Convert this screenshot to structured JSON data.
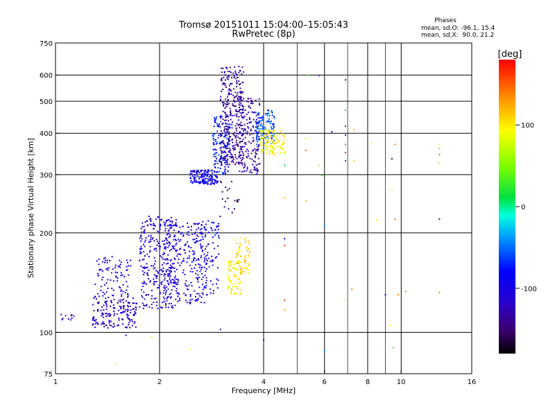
{
  "chart_data": {
    "type": "scatter",
    "title": "Tromsø 20151011 15:04:00–15:05:43",
    "subtitle": "RwPretec (8p)",
    "info": {
      "heading": "Phases",
      "line1": "mean, sd,O: -96.1, 15.4",
      "line2": "mean, sd,X:  90.0, 21.2"
    },
    "xlabel": "Frequency [MHz]",
    "ylabel": "Stationary phase Virtual Height [km]",
    "x_scale": "log",
    "y_scale": "log",
    "xlim": [
      1,
      16
    ],
    "ylim": [
      75,
      750
    ],
    "x_ticks": [
      1,
      2,
      4,
      6,
      8,
      10,
      16
    ],
    "y_ticks": [
      75,
      100,
      200,
      300,
      400,
      500,
      600,
      750
    ],
    "x_major_grid": [
      2,
      4,
      6,
      8,
      10
    ],
    "x_minor_grid": [
      5,
      7,
      9
    ],
    "y_grid": [
      100,
      200,
      300,
      400,
      500,
      600
    ],
    "grid": true,
    "colorbar": {
      "label": "[deg]",
      "range": [
        -180,
        180
      ],
      "ticks": [
        100,
        0,
        -100
      ]
    },
    "clusters": [
      {
        "x": [
          1.02,
          1.13
        ],
        "y": [
          108,
          114
        ],
        "phase": -120,
        "n": 10
      },
      {
        "x": [
          1.28,
          1.72
        ],
        "y": [
          103,
          128
        ],
        "phase": -115,
        "n": 170
      },
      {
        "x": [
          1.3,
          1.65
        ],
        "y": [
          128,
          170
        ],
        "phase": -105,
        "n": 90
      },
      {
        "x": [
          1.75,
          2.25
        ],
        "y": [
          118,
          225
        ],
        "phase": -108,
        "n": 300
      },
      {
        "x": [
          2.05,
          2.75
        ],
        "y": [
          122,
          215
        ],
        "phase": -100,
        "n": 260
      },
      {
        "x": [
          2.6,
          2.98
        ],
        "y": [
          130,
          220
        ],
        "phase": -88,
        "n": 80
      },
      {
        "x": [
          2.45,
          2.95
        ],
        "y": [
          280,
          310
        ],
        "phase": -92,
        "n": 150
      },
      {
        "x": [
          2.85,
          3.2
        ],
        "y": [
          300,
          450
        ],
        "phase": -75,
        "n": 140
      },
      {
        "x": [
          3.0,
          3.5
        ],
        "y": [
          320,
          640
        ],
        "phase": -135,
        "n": 320
      },
      {
        "x": [
          3.4,
          3.9
        ],
        "y": [
          300,
          520
        ],
        "phase": -130,
        "n": 180
      },
      {
        "x": [
          3.8,
          4.3
        ],
        "y": [
          370,
          470
        ],
        "phase": -60,
        "n": 110
      },
      {
        "x": [
          3.9,
          4.6
        ],
        "y": [
          345,
          410
        ],
        "phase": 95,
        "n": 120
      },
      {
        "x": [
          3.15,
          3.45
        ],
        "y": [
          130,
          165
        ],
        "phase": 95,
        "n": 80
      },
      {
        "x": [
          3.3,
          3.65
        ],
        "y": [
          150,
          195
        ],
        "phase": 110,
        "n": 60
      },
      {
        "x": [
          2.95,
          3.4
        ],
        "y": [
          215,
          290
        ],
        "phase": -150,
        "n": 20
      }
    ],
    "scattered": [
      {
        "x": 1.49,
        "y": 80,
        "phase": 100
      },
      {
        "x": 1.6,
        "y": 98,
        "phase": -100
      },
      {
        "x": 1.9,
        "y": 97,
        "phase": 100
      },
      {
        "x": 2.45,
        "y": 89,
        "phase": 90
      },
      {
        "x": 3.0,
        "y": 102,
        "phase": -110
      },
      {
        "x": 4.0,
        "y": 95,
        "phase": -100
      },
      {
        "x": 4.6,
        "y": 125,
        "phase": 160
      },
      {
        "x": 4.6,
        "y": 117,
        "phase": 130
      },
      {
        "x": 4.6,
        "y": 183,
        "phase": 160
      },
      {
        "x": 4.6,
        "y": 192,
        "phase": -100
      },
      {
        "x": 4.6,
        "y": 255,
        "phase": 120
      },
      {
        "x": 4.6,
        "y": 320,
        "phase": 10
      },
      {
        "x": 5.3,
        "y": 250,
        "phase": 120
      },
      {
        "x": 5.3,
        "y": 355,
        "phase": 150
      },
      {
        "x": 5.3,
        "y": 385,
        "phase": 100
      },
      {
        "x": 5.4,
        "y": 600,
        "phase": 30
      },
      {
        "x": 5.8,
        "y": 320,
        "phase": 110
      },
      {
        "x": 5.9,
        "y": 298,
        "phase": 20
      },
      {
        "x": 5.8,
        "y": 598,
        "phase": -110
      },
      {
        "x": 6.0,
        "y": 210,
        "phase": -40
      },
      {
        "x": 6.0,
        "y": 88,
        "phase": -40
      },
      {
        "x": 6.3,
        "y": 404,
        "phase": -100
      },
      {
        "x": 6.9,
        "y": 580,
        "phase": -100
      },
      {
        "x": 6.9,
        "y": 470,
        "phase": -30
      },
      {
        "x": 6.9,
        "y": 420,
        "phase": -60
      },
      {
        "x": 6.9,
        "y": 395,
        "phase": -70
      },
      {
        "x": 6.9,
        "y": 370,
        "phase": 150
      },
      {
        "x": 6.9,
        "y": 350,
        "phase": 170
      },
      {
        "x": 6.9,
        "y": 330,
        "phase": -60
      },
      {
        "x": 6.9,
        "y": 125,
        "phase": 100
      },
      {
        "x": 7.2,
        "y": 135,
        "phase": 140
      },
      {
        "x": 7.3,
        "y": 410,
        "phase": 120
      },
      {
        "x": 7.3,
        "y": 330,
        "phase": 110
      },
      {
        "x": 8.2,
        "y": 375,
        "phase": 100
      },
      {
        "x": 8.5,
        "y": 218,
        "phase": 100
      },
      {
        "x": 9.0,
        "y": 130,
        "phase": -120
      },
      {
        "x": 9.3,
        "y": 105,
        "phase": 100
      },
      {
        "x": 9.4,
        "y": 270,
        "phase": 100
      },
      {
        "x": 9.4,
        "y": 335,
        "phase": -120
      },
      {
        "x": 9.5,
        "y": 90,
        "phase": 30
      },
      {
        "x": 9.6,
        "y": 220,
        "phase": 150
      },
      {
        "x": 9.6,
        "y": 370,
        "phase": 140
      },
      {
        "x": 9.8,
        "y": 130,
        "phase": 140
      },
      {
        "x": 10.3,
        "y": 133,
        "phase": 140
      },
      {
        "x": 12.9,
        "y": 220,
        "phase": -140
      },
      {
        "x": 12.9,
        "y": 132,
        "phase": 140
      },
      {
        "x": 12.9,
        "y": 325,
        "phase": 110
      },
      {
        "x": 12.9,
        "y": 345,
        "phase": 150
      },
      {
        "x": 12.9,
        "y": 360,
        "phase": 120
      },
      {
        "x": 12.9,
        "y": 370,
        "phase": 100
      }
    ]
  }
}
